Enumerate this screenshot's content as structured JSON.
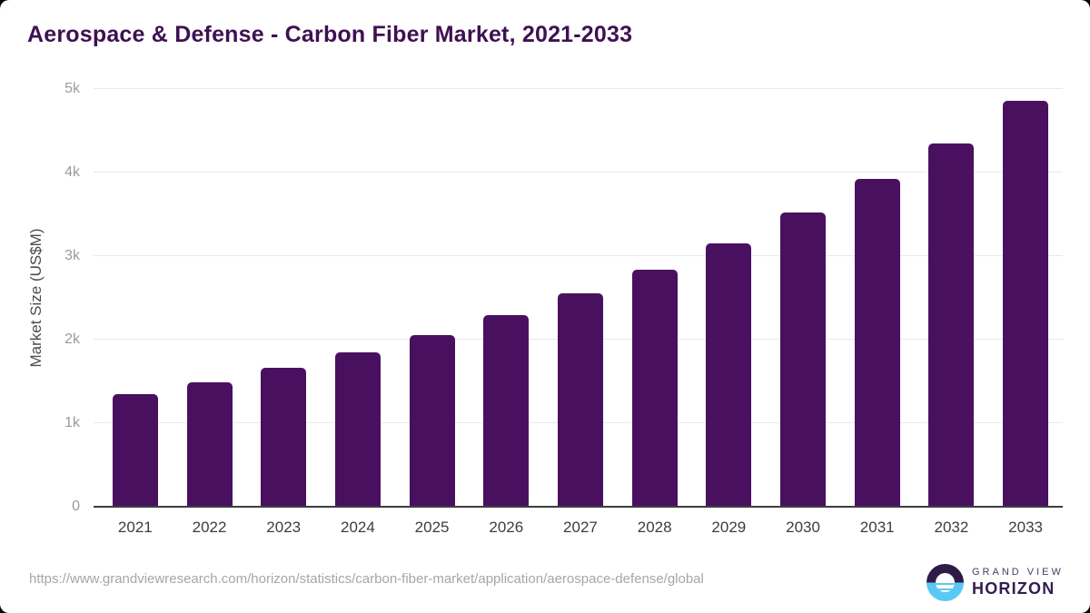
{
  "chart": {
    "title": "Aerospace & Defense - Carbon Fiber Market, 2021-2033",
    "y_axis_title": "Market Size (US$M)"
  },
  "chart_data": {
    "type": "bar",
    "title": "Aerospace & Defense - Carbon Fiber Market, 2021-2033",
    "categories": [
      "2021",
      "2022",
      "2023",
      "2024",
      "2025",
      "2026",
      "2027",
      "2028",
      "2029",
      "2030",
      "2031",
      "2032",
      "2033"
    ],
    "values": [
      1350,
      1490,
      1660,
      1850,
      2050,
      2290,
      2555,
      2835,
      3150,
      3520,
      3925,
      4350,
      4860
    ],
    "xlabel": "",
    "ylabel": "Market Size (US$M)",
    "ylim": [
      0,
      5000
    ],
    "yticks": [
      {
        "value": 0,
        "label": "0"
      },
      {
        "value": 1000,
        "label": "1k"
      },
      {
        "value": 2000,
        "label": "2k"
      },
      {
        "value": 3000,
        "label": "3k"
      },
      {
        "value": 4000,
        "label": "4k"
      },
      {
        "value": 5000,
        "label": "5k"
      }
    ],
    "grid": "horizontal",
    "legend_position": "none",
    "bar_color": "#4a1060"
  },
  "footer": {
    "source_url": "https://www.grandviewresearch.com/horizon/statistics/carbon-fiber-market/application/aerospace-defense/global",
    "logo": {
      "line1": "GRAND VIEW",
      "line2": "HORIZON"
    }
  },
  "colors": {
    "title_text": "#3e1152",
    "bar_fill": "#4a1060",
    "gridline": "#e9e9e9",
    "axis_line": "#3d3d3d",
    "tick_label": "#9b9b9b",
    "x_label": "#3d3d3d",
    "y_axis_title": "#4c4c4c",
    "source_text": "#a6a6a6",
    "logo_dark": "#2e1c47",
    "logo_blue": "#5ac8f5"
  }
}
